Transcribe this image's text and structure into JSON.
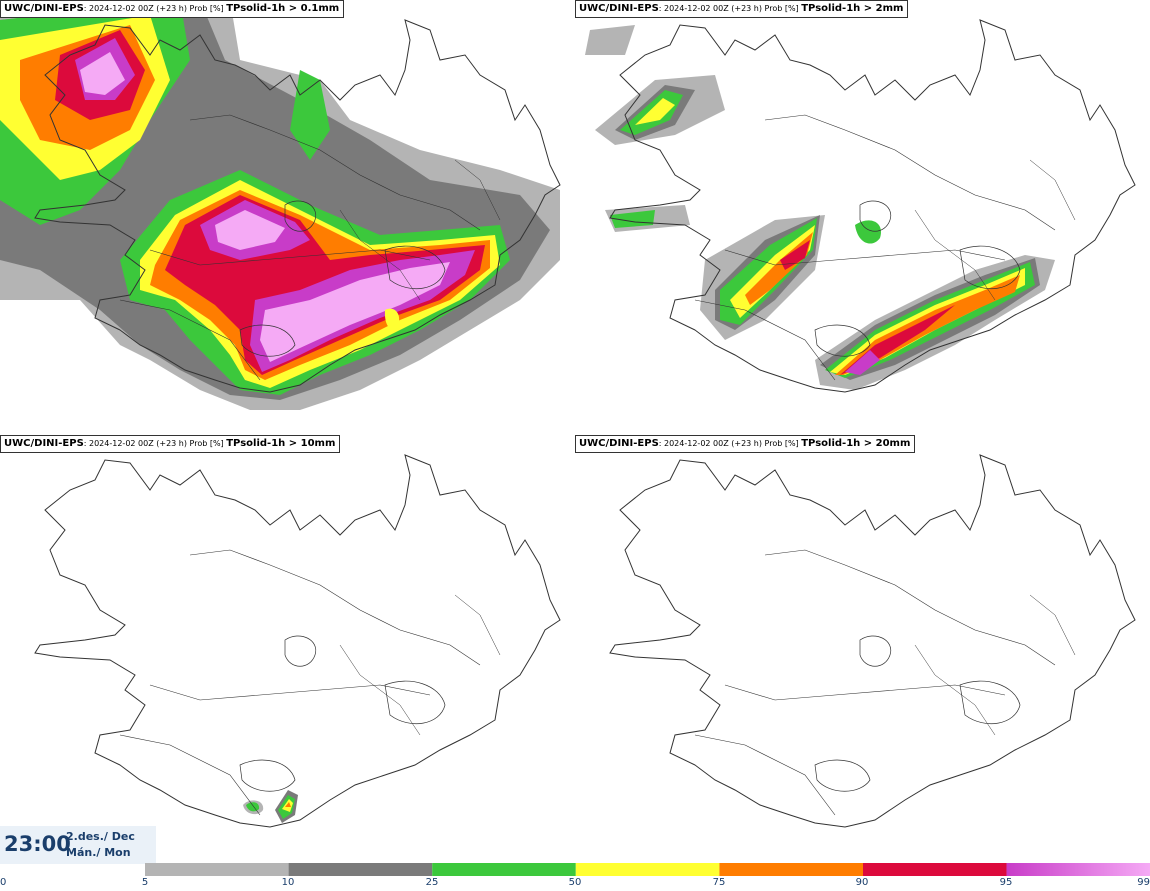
{
  "panels": [
    {
      "model": "UWC/DINI-EPS",
      "run_info": ": 2024-12-02 00Z (+23 h) Prob [%] ",
      "variable": "TPsolid-1h > 0.1mm"
    },
    {
      "model": "UWC/DINI-EPS",
      "run_info": ": 2024-12-02 00Z (+23 h) Prob [%] ",
      "variable": "TPsolid-1h > 2mm"
    },
    {
      "model": "UWC/DINI-EPS",
      "run_info": ": 2024-12-02 00Z (+23 h) Prob [%] ",
      "variable": "TPsolid-1h > 10mm"
    },
    {
      "model": "UWC/DINI-EPS",
      "run_info": ": 2024-12-02 00Z (+23 h) Prob [%] ",
      "variable": "TPsolid-1h > 20mm"
    }
  ],
  "valid_time": {
    "time": "23:00",
    "date_line1": "2.des./ Dec",
    "date_line2": "Mán./ Mon"
  },
  "legend": {
    "ticks": [
      "0",
      "5",
      "10",
      "25",
      "50",
      "75",
      "90",
      "95",
      "99"
    ],
    "colors": {
      "p5": "#b4b4b4",
      "p10": "#7a7a7a",
      "p25": "#3cc83c",
      "p50": "#ffff32",
      "p75": "#ff7d00",
      "p90": "#dc0a3c",
      "p95": "#c83cc8",
      "p99": "#f5aaf5"
    }
  }
}
